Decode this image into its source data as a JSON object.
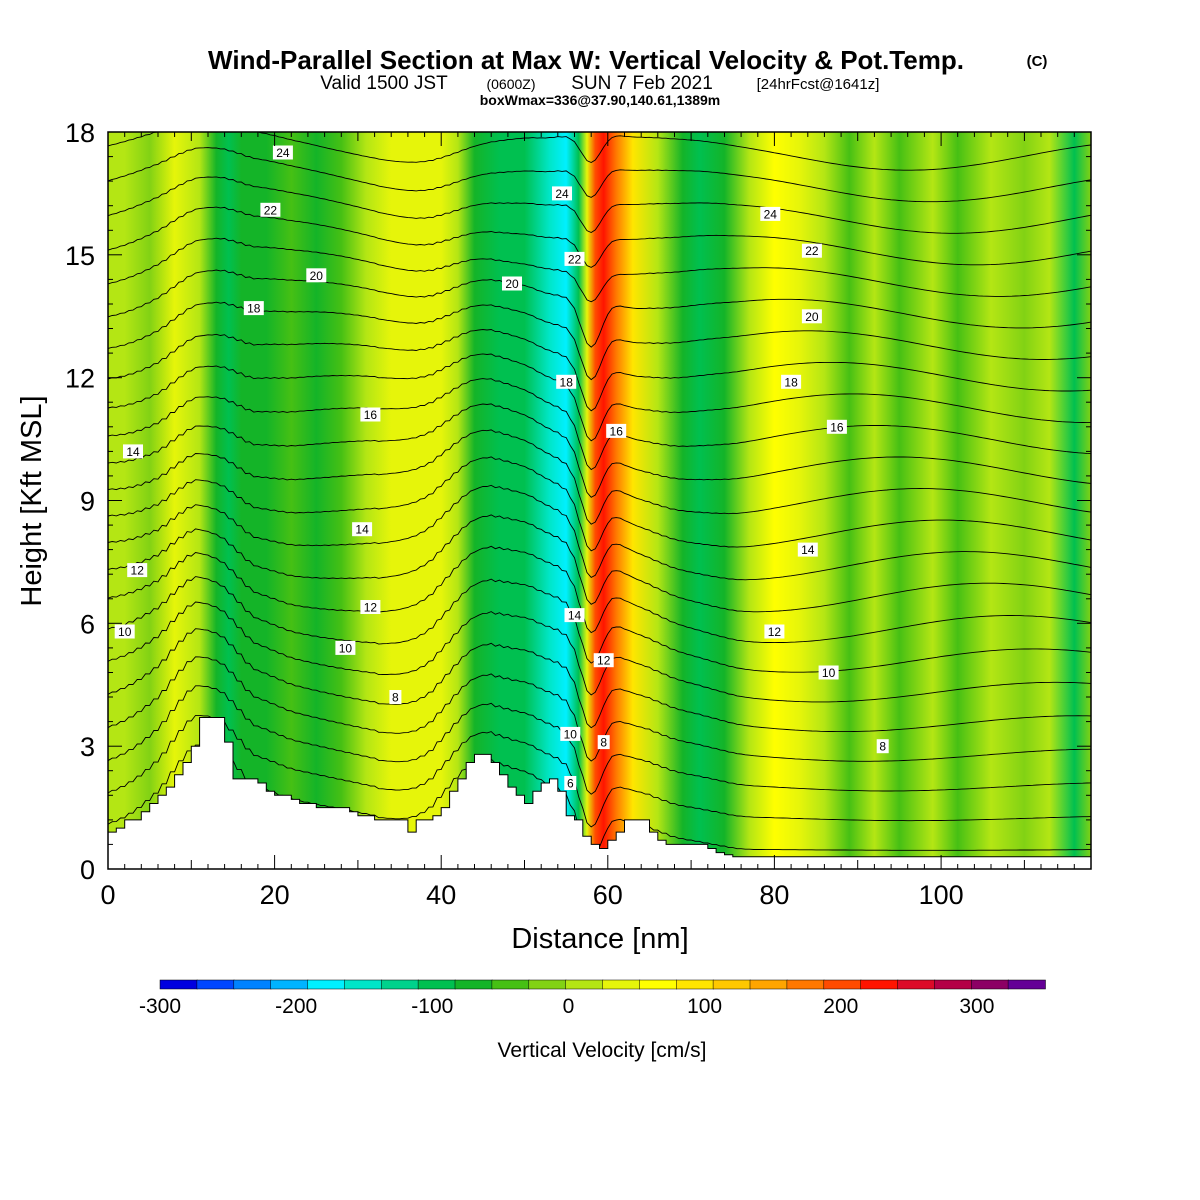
{
  "chart_data": {
    "type": "heatmap",
    "title": "Wind-Parallel Section at Max W: Vertical Velocity & Pot.Temp.",
    "title_mark": "(C)",
    "subtitle_main": "Valid 1500 JST",
    "subtitle_utc": "(0600Z)",
    "subtitle_date": "SUN 7 Feb 2021",
    "subtitle_fcst": "[24hrFcst@1641z]",
    "subtitle_box": "boxWmax=336@37.90,140.61,1389m",
    "xlabel": "Distance [nm]",
    "ylabel": "Height [Kft MSL]",
    "xlim": [
      0,
      118
    ],
    "ylim": [
      0,
      18
    ],
    "x_ticks": [
      "0",
      "20",
      "40",
      "60",
      "80",
      "100"
    ],
    "x_tick_values": [
      0,
      20,
      40,
      60,
      80,
      100
    ],
    "y_ticks": [
      "0",
      "3",
      "6",
      "9",
      "12",
      "15",
      "18"
    ],
    "y_tick_values": [
      0,
      3,
      6,
      9,
      12,
      15,
      18
    ],
    "colorbar": {
      "label": "Vertical Velocity [cm/s]",
      "min": -300,
      "max": 350,
      "tick_labels": [
        "-300",
        "-200",
        "-100",
        "0",
        "100",
        "200",
        "300"
      ],
      "tick_values": [
        -300,
        -200,
        -100,
        0,
        100,
        200,
        300
      ],
      "colors": [
        "#0000e0",
        "#0046ff",
        "#0082ff",
        "#00b4ff",
        "#00f0ff",
        "#00e6c8",
        "#00d28c",
        "#00c050",
        "#14b428",
        "#46c014",
        "#82d214",
        "#b4e614",
        "#e6f50a",
        "#ffff00",
        "#ffe600",
        "#ffc800",
        "#ffa500",
        "#ff7800",
        "#ff4b00",
        "#ff1400",
        "#dc0a28",
        "#b40046",
        "#8c0064",
        "#640096"
      ]
    },
    "velocity_bands": [
      {
        "x": 0,
        "w": 4
      },
      {
        "x": 2,
        "w": 10
      },
      {
        "x": 5,
        "w": -10
      },
      {
        "x": 8,
        "w": 30
      },
      {
        "x": 11,
        "w": 0
      },
      {
        "x": 13,
        "w": -70
      },
      {
        "x": 14.5,
        "w": -110
      },
      {
        "x": 16,
        "w": -60
      },
      {
        "x": 19,
        "w": -80
      },
      {
        "x": 22,
        "w": -40
      },
      {
        "x": 25,
        "w": -70
      },
      {
        "x": 28,
        "w": -50
      },
      {
        "x": 31,
        "w": 10
      },
      {
        "x": 34,
        "w": 25
      },
      {
        "x": 37,
        "w": 45
      },
      {
        "x": 40,
        "w": 30
      },
      {
        "x": 42,
        "w": 0
      },
      {
        "x": 44,
        "w": -70
      },
      {
        "x": 47,
        "w": -100
      },
      {
        "x": 50,
        "w": -110
      },
      {
        "x": 53,
        "w": -140
      },
      {
        "x": 55,
        "w": -190
      },
      {
        "x": 56.5,
        "w": -100
      },
      {
        "x": 57.5,
        "w": 30
      },
      {
        "x": 58.5,
        "w": 200
      },
      {
        "x": 59.5,
        "w": 240
      },
      {
        "x": 61,
        "w": 170
      },
      {
        "x": 63,
        "w": 80
      },
      {
        "x": 66,
        "w": 0
      },
      {
        "x": 69,
        "w": -70
      },
      {
        "x": 71,
        "w": -110
      },
      {
        "x": 74,
        "w": -70
      },
      {
        "x": 77,
        "w": 20
      },
      {
        "x": 80,
        "w": 70
      },
      {
        "x": 83,
        "w": 45
      },
      {
        "x": 86,
        "w": 0
      },
      {
        "x": 89,
        "w": -40
      },
      {
        "x": 92,
        "w": 10
      },
      {
        "x": 95,
        "w": -30
      },
      {
        "x": 99,
        "w": 10
      },
      {
        "x": 102,
        "w": -40
      },
      {
        "x": 106,
        "w": 0
      },
      {
        "x": 110,
        "w": -20
      },
      {
        "x": 113,
        "w": 10
      },
      {
        "x": 116,
        "w": -100
      },
      {
        "x": 118,
        "w": -10
      }
    ],
    "terrain_kft": [
      0.9,
      1.0,
      1.2,
      1.2,
      1.4,
      1.6,
      1.8,
      2.0,
      2.3,
      2.6,
      3.0,
      3.7,
      3.7,
      3.7,
      3.1,
      2.2,
      2.2,
      2.2,
      2.1,
      1.9,
      1.8,
      1.8,
      1.7,
      1.6,
      1.6,
      1.5,
      1.5,
      1.5,
      1.5,
      1.4,
      1.3,
      1.3,
      1.2,
      1.2,
      1.2,
      1.2,
      0.9,
      1.2,
      1.2,
      1.3,
      1.5,
      1.9,
      2.2,
      2.6,
      2.8,
      2.8,
      2.6,
      2.3,
      2.0,
      1.8,
      1.6,
      1.9,
      2.1,
      2.2,
      1.9,
      1.3,
      1.2,
      0.8,
      0.6,
      0.5,
      0.7,
      0.9,
      1.2,
      1.2,
      1.2,
      0.9,
      0.7,
      0.6,
      0.6,
      0.6,
      0.6,
      0.6,
      0.5,
      0.4,
      0.35,
      0.3,
      0.3,
      0.3,
      0.3,
      0.3,
      0.3,
      0.3,
      0.3,
      0.3,
      0.3,
      0.3,
      0.3,
      0.3,
      0.3,
      0.3,
      0.3,
      0.3,
      0.3,
      0.3,
      0.3,
      0.3,
      0.3,
      0.3,
      0.3,
      0.3,
      0.3,
      0.3,
      0.3,
      0.3,
      0.3,
      0.3,
      0.3,
      0.3,
      0.3,
      0.3,
      0.3,
      0.3,
      0.3,
      0.3,
      0.3,
      0.3,
      0.3,
      0.3,
      0.3
    ],
    "theta_levels": [
      3,
      4,
      5,
      6,
      7,
      8,
      9,
      10,
      11,
      12,
      13,
      14,
      15,
      16,
      17,
      18,
      19,
      20,
      21,
      22,
      23,
      24,
      25
    ],
    "theta_labels": [
      {
        "text": "24",
        "x": 21,
        "y": 17.5
      },
      {
        "text": "22",
        "x": 19.5,
        "y": 16.1
      },
      {
        "text": "20",
        "x": 25,
        "y": 14.5
      },
      {
        "text": "18",
        "x": 17.5,
        "y": 13.7
      },
      {
        "text": "16",
        "x": 31.5,
        "y": 11.1
      },
      {
        "text": "14",
        "x": 3,
        "y": 10.2
      },
      {
        "text": "14",
        "x": 30.5,
        "y": 8.3
      },
      {
        "text": "12",
        "x": 3.5,
        "y": 7.3
      },
      {
        "text": "12",
        "x": 31.5,
        "y": 6.4
      },
      {
        "text": "10",
        "x": 2,
        "y": 5.8
      },
      {
        "text": "10",
        "x": 28.5,
        "y": 5.4
      },
      {
        "text": "8",
        "x": 34.5,
        "y": 4.2
      },
      {
        "text": "24",
        "x": 54.5,
        "y": 16.5
      },
      {
        "text": "22",
        "x": 56,
        "y": 14.9
      },
      {
        "text": "20",
        "x": 48.5,
        "y": 14.3
      },
      {
        "text": "18",
        "x": 55,
        "y": 11.9
      },
      {
        "text": "16",
        "x": 61,
        "y": 10.7
      },
      {
        "text": "14",
        "x": 56,
        "y": 6.2
      },
      {
        "text": "12",
        "x": 59.5,
        "y": 5.1
      },
      {
        "text": "10",
        "x": 55.5,
        "y": 3.3
      },
      {
        "text": "8",
        "x": 59.5,
        "y": 3.1
      },
      {
        "text": "6",
        "x": 55.5,
        "y": 2.1
      },
      {
        "text": "24",
        "x": 79.5,
        "y": 16.0
      },
      {
        "text": "22",
        "x": 84.5,
        "y": 15.1
      },
      {
        "text": "20",
        "x": 84.5,
        "y": 13.5
      },
      {
        "text": "18",
        "x": 82,
        "y": 11.9
      },
      {
        "text": "16",
        "x": 87.5,
        "y": 10.8
      },
      {
        "text": "14",
        "x": 84,
        "y": 7.8
      },
      {
        "text": "12",
        "x": 80,
        "y": 5.8
      },
      {
        "text": "10",
        "x": 86.5,
        "y": 4.8
      },
      {
        "text": "8",
        "x": 93,
        "y": 3.0
      }
    ]
  }
}
